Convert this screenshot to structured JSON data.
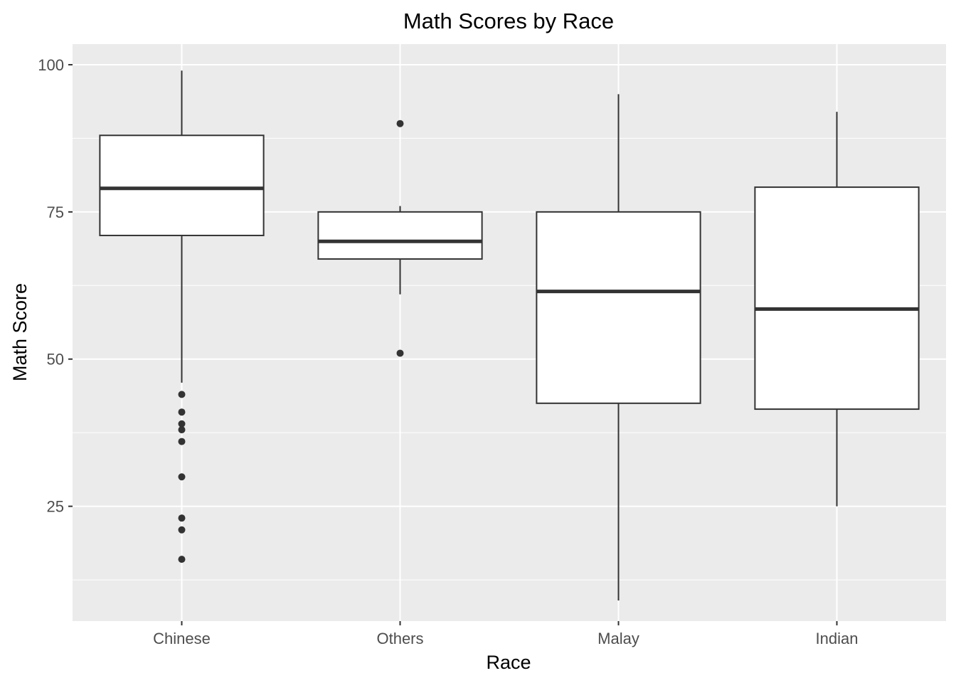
{
  "chart_data": {
    "type": "boxplot",
    "title": "Math Scores by Race",
    "xlabel": "Race",
    "ylabel": "Math Score",
    "categories": [
      "Chinese",
      "Others",
      "Malay",
      "Indian"
    ],
    "ylim": [
      5.5,
      103.5
    ],
    "yticks": [
      25,
      50,
      75,
      100
    ],
    "grid": true,
    "legend": "none",
    "colors": {
      "panel_background": "#EBEBEB",
      "grid_line": "#FFFFFF",
      "box_fill": "#FFFFFF",
      "box_stroke": "#333333",
      "tick_label": "#4D4D4D"
    },
    "boxes": [
      {
        "category": "Chinese",
        "whisker_low": 46,
        "q1": 71,
        "median": 79,
        "q3": 88,
        "whisker_high": 99,
        "outliers": [
          44,
          41,
          39,
          38,
          36,
          30,
          23,
          21,
          16
        ]
      },
      {
        "category": "Others",
        "whisker_low": 61,
        "q1": 67,
        "median": 70,
        "q3": 75,
        "whisker_high": 76,
        "outliers": [
          90,
          51
        ]
      },
      {
        "category": "Malay",
        "whisker_low": 9,
        "q1": 42.5,
        "median": 61.5,
        "q3": 75,
        "whisker_high": 95,
        "outliers": []
      },
      {
        "category": "Indian",
        "whisker_low": 25,
        "q1": 41.5,
        "median": 58.5,
        "q3": 79.2,
        "whisker_high": 92,
        "outliers": []
      }
    ]
  }
}
